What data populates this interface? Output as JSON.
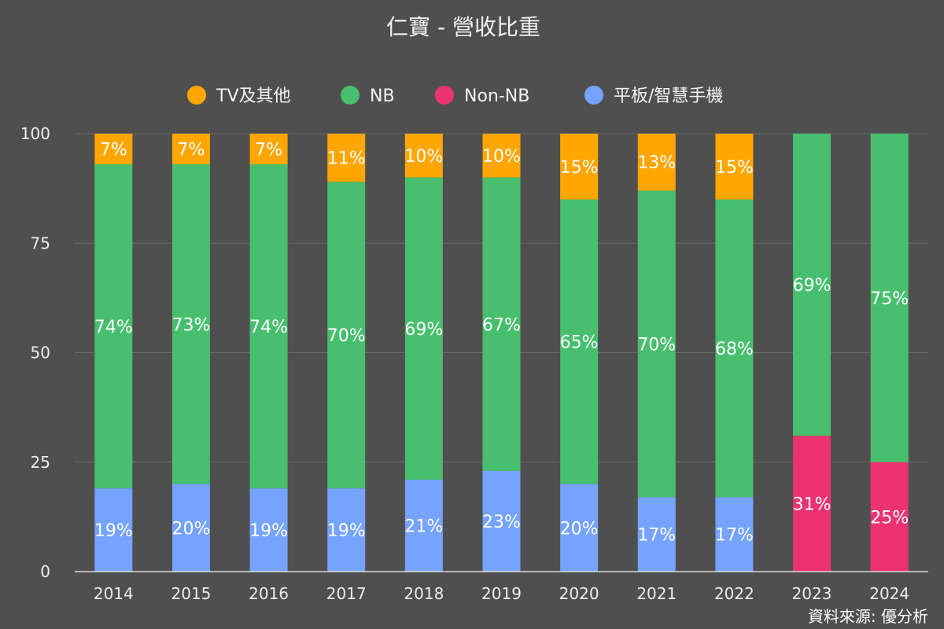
{
  "colors": {
    "background": "#4f4f4f",
    "grid": "#6a6a6a",
    "axis": "#d9d9d9",
    "tv": "#ffa600",
    "nb": "#48bf6e",
    "non_nb": "#ec3372",
    "tablet": "#75a3ff"
  },
  "source": "資料來源: 優分析",
  "chart_data": {
    "type": "bar",
    "stacked": true,
    "title": "仁寶 - 營收比重",
    "xlabel": "",
    "ylabel": "",
    "ylim": [
      0,
      100
    ],
    "yticks": [
      0,
      25,
      50,
      75,
      100
    ],
    "grid": true,
    "legend_position": "top",
    "categories": [
      "2014",
      "2015",
      "2016",
      "2017",
      "2018",
      "2019",
      "2020",
      "2021",
      "2022",
      "2023",
      "2024"
    ],
    "series": [
      {
        "name": "平板/智慧手機",
        "color_key": "tablet",
        "values": [
          19,
          20,
          19,
          19,
          21,
          23,
          20,
          17,
          17,
          0,
          0
        ],
        "labels": [
          "19%",
          "20%",
          "19%",
          "19%",
          "21%",
          "23%",
          "20%",
          "17%",
          "17%",
          "",
          ""
        ]
      },
      {
        "name": "Non-NB",
        "color_key": "non_nb",
        "values": [
          0,
          0,
          0,
          0,
          0,
          0,
          0,
          0,
          0,
          31,
          25
        ],
        "labels": [
          "",
          "",
          "",
          "",
          "",
          "",
          "",
          "",
          "",
          "31%",
          "25%"
        ]
      },
      {
        "name": "NB",
        "color_key": "nb",
        "values": [
          74,
          73,
          74,
          70,
          69,
          67,
          65,
          70,
          68,
          69,
          75
        ],
        "labels": [
          "74%",
          "73%",
          "74%",
          "70%",
          "69%",
          "67%",
          "65%",
          "70%",
          "68%",
          "69%",
          "75%"
        ]
      },
      {
        "name": "TV及其他",
        "color_key": "tv",
        "values": [
          7,
          7,
          7,
          11,
          10,
          10,
          15,
          13,
          15,
          0,
          0
        ],
        "labels": [
          "7%",
          "7%",
          "7%",
          "11%",
          "10%",
          "10%",
          "15%",
          "13%",
          "15%",
          "",
          ""
        ]
      }
    ],
    "legend_order": [
      "TV及其他",
      "NB",
      "Non-NB",
      "平板/智慧手機"
    ]
  }
}
